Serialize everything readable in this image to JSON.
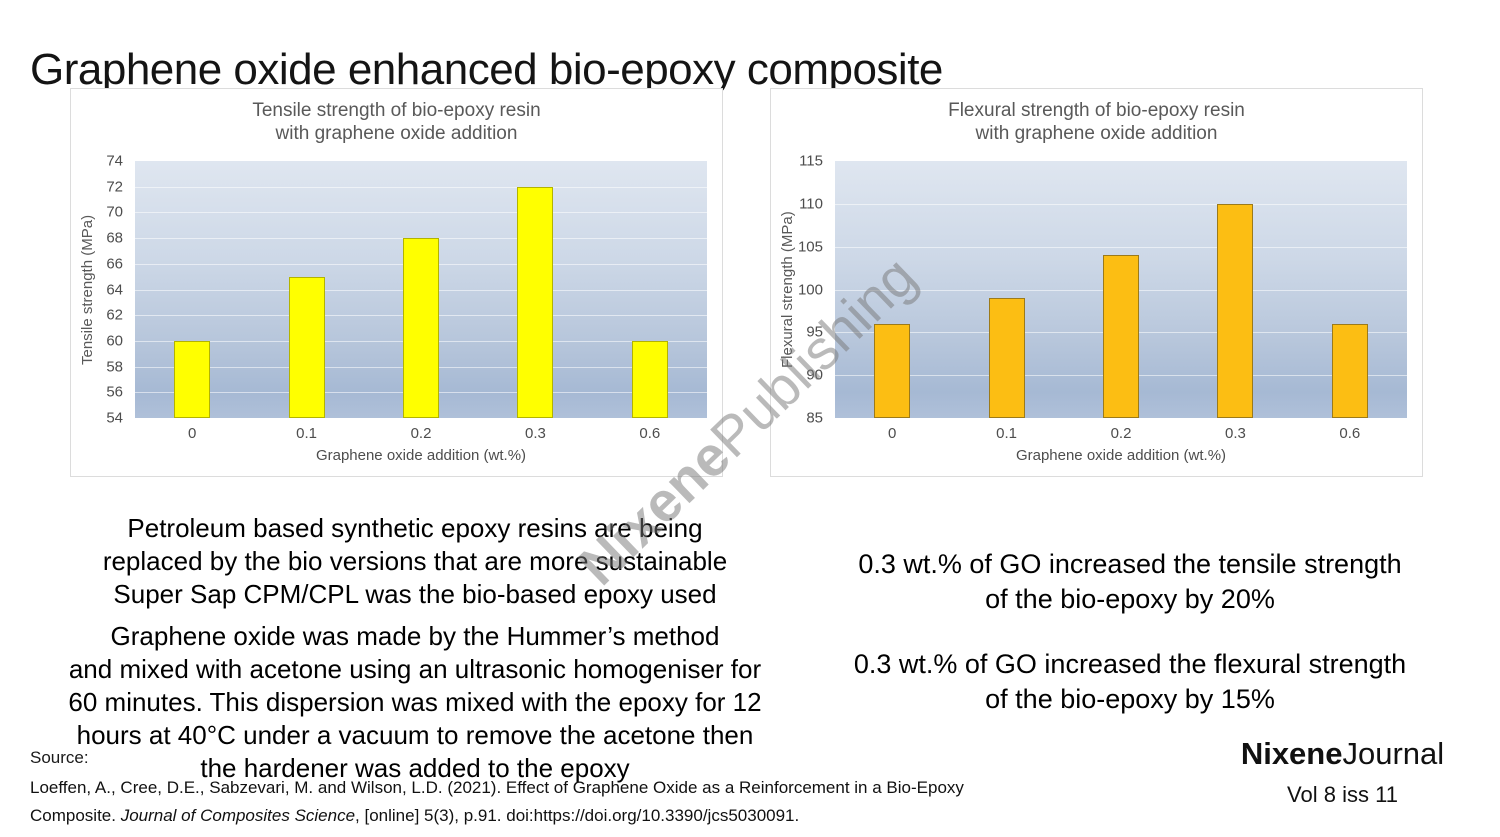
{
  "page_title": "Graphene oxide enhanced bio-epoxy composite",
  "watermark": {
    "bold": "Nixene",
    "regular": "Publishing"
  },
  "chart_data": [
    {
      "type": "bar",
      "title": "Tensile strength of bio-epoxy resin\nwith graphene oxide addition",
      "ylabel": "Tensile strength (MPa)",
      "xlabel": "Graphene oxide addition (wt.%)",
      "categories": [
        "0",
        "0.1",
        "0.2",
        "0.3",
        "0.6"
      ],
      "values": [
        60,
        65,
        68,
        72,
        60
      ],
      "ylim": [
        54,
        74
      ],
      "ystep": 2,
      "grid": true,
      "legend": false,
      "bar_color": "#ffff00",
      "bar_border": "#b3b300"
    },
    {
      "type": "bar",
      "title": "Flexural strength of bio-epoxy resin\nwith graphene oxide addition",
      "ylabel": "Flexural strength (MPa)",
      "xlabel": "Graphene oxide addition (wt.%)",
      "categories": [
        "0",
        "0.1",
        "0.2",
        "0.3",
        "0.6"
      ],
      "values": [
        96,
        99,
        104,
        110,
        96
      ],
      "ylim": [
        85,
        115
      ],
      "ystep": 5,
      "grid": true,
      "legend": false,
      "bar_color": "#fcbe13",
      "bar_border": "#9c7a1a"
    }
  ],
  "notes_left": {
    "para1": "Petroleum based synthetic epoxy resins are being\nreplaced by the bio versions that are more sustainable\nSuper Sap CPM/CPL was the bio-based epoxy used",
    "para2": "Graphene oxide was made by the Hummer’s method\nand mixed with acetone using an ultrasonic homogeniser for\n60 minutes.  This dispersion was mixed with the epoxy for 12\nhours at 40°C under a vacuum to remove the acetone then\nthe hardener was added to the epoxy"
  },
  "notes_right": {
    "note1": "0.3 wt.% of GO increased the tensile strength\nof the bio-epoxy by 20%",
    "note2": "0.3 wt.% of GO increased the flexural strength\nof the bio-epoxy by 15%"
  },
  "source": {
    "label": "Source:",
    "line1": "Loeffen, A., Cree, D.E., Sabzevari, M. and Wilson, L.D. (2021). Effect of Graphene Oxide as a Reinforcement in a Bio-Epoxy",
    "line2_prefix": "Composite. ",
    "line2_italic": "Journal of Composites Science",
    "line2_suffix": ", [online] 5(3), p.91. doi:https://doi.org/10.3390/jcs5030091."
  },
  "footer_logo": {
    "brand_bold": "Nixene",
    "brand_regular": "Journal",
    "issue": "Vol 8  iss 11"
  }
}
